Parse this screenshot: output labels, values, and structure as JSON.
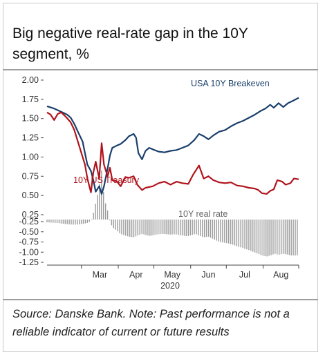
{
  "title": "Big negative real-rate gap in the 10Y segment, %",
  "source": "Source: Danske Bank. Note: Past performance is not a reliable indicator of current or future results",
  "chart_data": {
    "type": "line",
    "title": "Big negative real-rate gap in the 10Y segment, %",
    "year_label": "2020",
    "x_start": "2020-02-01",
    "x_end": "2020-08-31",
    "month_labels": [
      "Mar",
      "Apr",
      "May",
      "Jun",
      "Jul",
      "Aug"
    ],
    "y_ticks": [
      "2.00",
      "1.75",
      "1.50",
      "1.25",
      "1.00",
      "0.75",
      "0.50",
      "0.25",
      "-0.25",
      "-0.50",
      "-0.75",
      "-1.00",
      "-1.25"
    ],
    "ylim": [
      -1.25,
      2.0
    ],
    "series": [
      {
        "name": "USA 10Y Breakeven",
        "type": "line",
        "color": "#1a3f6b",
        "points": [
          [
            "2020-02-01",
            1.66
          ],
          [
            "2020-02-07",
            1.63
          ],
          [
            "2020-02-14",
            1.58
          ],
          [
            "2020-02-18",
            1.55
          ],
          [
            "2020-02-21",
            1.51
          ],
          [
            "2020-02-24",
            1.43
          ],
          [
            "2020-02-27",
            1.33
          ],
          [
            "2020-03-02",
            1.2
          ],
          [
            "2020-03-04",
            1.05
          ],
          [
            "2020-03-06",
            0.9
          ],
          [
            "2020-03-09",
            0.82
          ],
          [
            "2020-03-11",
            0.7
          ],
          [
            "2020-03-13",
            0.55
          ],
          [
            "2020-03-16",
            0.62
          ],
          [
            "2020-03-18",
            0.52
          ],
          [
            "2020-03-20",
            0.62
          ],
          [
            "2020-03-23",
            0.85
          ],
          [
            "2020-03-25",
            1.02
          ],
          [
            "2020-03-27",
            1.12
          ],
          [
            "2020-03-31",
            1.15
          ],
          [
            "2020-04-03",
            1.17
          ],
          [
            "2020-04-07",
            1.22
          ],
          [
            "2020-04-10",
            1.27
          ],
          [
            "2020-04-14",
            1.3
          ],
          [
            "2020-04-16",
            1.25
          ],
          [
            "2020-04-18",
            1.05
          ],
          [
            "2020-04-21",
            0.97
          ],
          [
            "2020-04-24",
            1.08
          ],
          [
            "2020-04-27",
            1.12
          ],
          [
            "2020-04-30",
            1.1
          ],
          [
            "2020-05-05",
            1.07
          ],
          [
            "2020-05-10",
            1.06
          ],
          [
            "2020-05-15",
            1.08
          ],
          [
            "2020-05-20",
            1.09
          ],
          [
            "2020-05-25",
            1.12
          ],
          [
            "2020-05-30",
            1.15
          ],
          [
            "2020-06-04",
            1.22
          ],
          [
            "2020-06-08",
            1.3
          ],
          [
            "2020-06-12",
            1.27
          ],
          [
            "2020-06-16",
            1.23
          ],
          [
            "2020-06-20",
            1.28
          ],
          [
            "2020-06-25",
            1.33
          ],
          [
            "2020-06-30",
            1.35
          ],
          [
            "2020-07-05",
            1.4
          ],
          [
            "2020-07-10",
            1.44
          ],
          [
            "2020-07-15",
            1.47
          ],
          [
            "2020-07-20",
            1.51
          ],
          [
            "2020-07-25",
            1.55
          ],
          [
            "2020-07-30",
            1.6
          ],
          [
            "2020-08-03",
            1.63
          ],
          [
            "2020-08-07",
            1.68
          ],
          [
            "2020-08-10",
            1.64
          ],
          [
            "2020-08-14",
            1.7
          ],
          [
            "2020-08-18",
            1.65
          ],
          [
            "2020-08-22",
            1.7
          ],
          [
            "2020-08-26",
            1.73
          ],
          [
            "2020-08-31",
            1.77
          ]
        ]
      },
      {
        "name": "10Y US Treasury",
        "type": "line",
        "color": "#b0141c",
        "points": [
          [
            "2020-02-01",
            1.58
          ],
          [
            "2020-02-04",
            1.55
          ],
          [
            "2020-02-07",
            1.48
          ],
          [
            "2020-02-10",
            1.56
          ],
          [
            "2020-02-13",
            1.58
          ],
          [
            "2020-02-17",
            1.52
          ],
          [
            "2020-02-21",
            1.45
          ],
          [
            "2020-02-24",
            1.35
          ],
          [
            "2020-02-27",
            1.2
          ],
          [
            "2020-03-02",
            1.0
          ],
          [
            "2020-03-04",
            0.9
          ],
          [
            "2020-03-06",
            0.72
          ],
          [
            "2020-03-09",
            0.54
          ],
          [
            "2020-03-11",
            0.8
          ],
          [
            "2020-03-13",
            0.94
          ],
          [
            "2020-03-16",
            0.72
          ],
          [
            "2020-03-18",
            1.18
          ],
          [
            "2020-03-20",
            0.9
          ],
          [
            "2020-03-23",
            0.75
          ],
          [
            "2020-03-25",
            0.86
          ],
          [
            "2020-03-27",
            0.7
          ],
          [
            "2020-03-31",
            0.68
          ],
          [
            "2020-04-03",
            0.62
          ],
          [
            "2020-04-07",
            0.74
          ],
          [
            "2020-04-10",
            0.73
          ],
          [
            "2020-04-14",
            0.75
          ],
          [
            "2020-04-17",
            0.64
          ],
          [
            "2020-04-21",
            0.57
          ],
          [
            "2020-04-24",
            0.6
          ],
          [
            "2020-04-30",
            0.62
          ],
          [
            "2020-05-05",
            0.66
          ],
          [
            "2020-05-10",
            0.68
          ],
          [
            "2020-05-15",
            0.64
          ],
          [
            "2020-05-20",
            0.68
          ],
          [
            "2020-05-25",
            0.66
          ],
          [
            "2020-05-30",
            0.65
          ],
          [
            "2020-06-03",
            0.77
          ],
          [
            "2020-06-08",
            0.89
          ],
          [
            "2020-06-12",
            0.72
          ],
          [
            "2020-06-16",
            0.75
          ],
          [
            "2020-06-20",
            0.7
          ],
          [
            "2020-06-25",
            0.67
          ],
          [
            "2020-06-30",
            0.66
          ],
          [
            "2020-07-05",
            0.67
          ],
          [
            "2020-07-10",
            0.63
          ],
          [
            "2020-07-15",
            0.62
          ],
          [
            "2020-07-20",
            0.6
          ],
          [
            "2020-07-25",
            0.59
          ],
          [
            "2020-07-28",
            0.57
          ],
          [
            "2020-07-31",
            0.53
          ],
          [
            "2020-08-04",
            0.52
          ],
          [
            "2020-08-07",
            0.56
          ],
          [
            "2020-08-10",
            0.58
          ],
          [
            "2020-08-13",
            0.7
          ],
          [
            "2020-08-17",
            0.68
          ],
          [
            "2020-08-20",
            0.64
          ],
          [
            "2020-08-24",
            0.66
          ],
          [
            "2020-08-27",
            0.72
          ],
          [
            "2020-08-31",
            0.71
          ]
        ]
      },
      {
        "name": "10Y real rate",
        "type": "bar",
        "color": "#9a9a9a",
        "points": [
          [
            "2020-02-01",
            -0.08
          ],
          [
            "2020-02-05",
            -0.09
          ],
          [
            "2020-02-10",
            -0.1
          ],
          [
            "2020-02-14",
            -0.12
          ],
          [
            "2020-02-19",
            -0.14
          ],
          [
            "2020-02-24",
            -0.15
          ],
          [
            "2020-02-28",
            -0.14
          ],
          [
            "2020-03-03",
            -0.12
          ],
          [
            "2020-03-06",
            -0.1
          ],
          [
            "2020-03-09",
            -0.04
          ],
          [
            "2020-03-11",
            0.08
          ],
          [
            "2020-03-13",
            0.22
          ],
          [
            "2020-03-16",
            0.42
          ],
          [
            "2020-03-17",
            0.62
          ],
          [
            "2020-03-18",
            0.64
          ],
          [
            "2020-03-19",
            0.48
          ],
          [
            "2020-03-20",
            0.28
          ],
          [
            "2020-03-23",
            0.12
          ],
          [
            "2020-03-25",
            -0.05
          ],
          [
            "2020-03-27",
            -0.22
          ],
          [
            "2020-03-31",
            -0.33
          ],
          [
            "2020-04-03",
            -0.42
          ],
          [
            "2020-04-07",
            -0.47
          ],
          [
            "2020-04-10",
            -0.5
          ],
          [
            "2020-04-14",
            -0.52
          ],
          [
            "2020-04-17",
            -0.47
          ],
          [
            "2020-04-21",
            -0.42
          ],
          [
            "2020-04-24",
            -0.45
          ],
          [
            "2020-04-28",
            -0.48
          ],
          [
            "2020-05-01",
            -0.45
          ],
          [
            "2020-05-05",
            -0.43
          ],
          [
            "2020-05-08",
            -0.42
          ],
          [
            "2020-05-12",
            -0.43
          ],
          [
            "2020-05-15",
            -0.44
          ],
          [
            "2020-05-19",
            -0.43
          ],
          [
            "2020-05-22",
            -0.45
          ],
          [
            "2020-05-26",
            -0.47
          ],
          [
            "2020-05-29",
            -0.49
          ],
          [
            "2020-06-02",
            -0.45
          ],
          [
            "2020-06-05",
            -0.42
          ],
          [
            "2020-06-09",
            -0.48
          ],
          [
            "2020-06-12",
            -0.52
          ],
          [
            "2020-06-16",
            -0.5
          ],
          [
            "2020-06-19",
            -0.55
          ],
          [
            "2020-06-23",
            -0.62
          ],
          [
            "2020-06-26",
            -0.66
          ],
          [
            "2020-06-30",
            -0.68
          ],
          [
            "2020-07-03",
            -0.7
          ],
          [
            "2020-07-07",
            -0.74
          ],
          [
            "2020-07-10",
            -0.78
          ],
          [
            "2020-07-14",
            -0.82
          ],
          [
            "2020-07-17",
            -0.86
          ],
          [
            "2020-07-21",
            -0.9
          ],
          [
            "2020-07-24",
            -0.95
          ],
          [
            "2020-07-28",
            -1.0
          ],
          [
            "2020-07-31",
            -1.05
          ],
          [
            "2020-08-04",
            -1.08
          ],
          [
            "2020-08-07",
            -1.05
          ],
          [
            "2020-08-11",
            -1.0
          ],
          [
            "2020-08-14",
            -1.03
          ],
          [
            "2020-08-18",
            -1.0
          ],
          [
            "2020-08-21",
            -1.02
          ],
          [
            "2020-08-25",
            -1.05
          ],
          [
            "2020-08-28",
            -1.05
          ],
          [
            "2020-08-31",
            -1.04
          ]
        ]
      }
    ]
  }
}
